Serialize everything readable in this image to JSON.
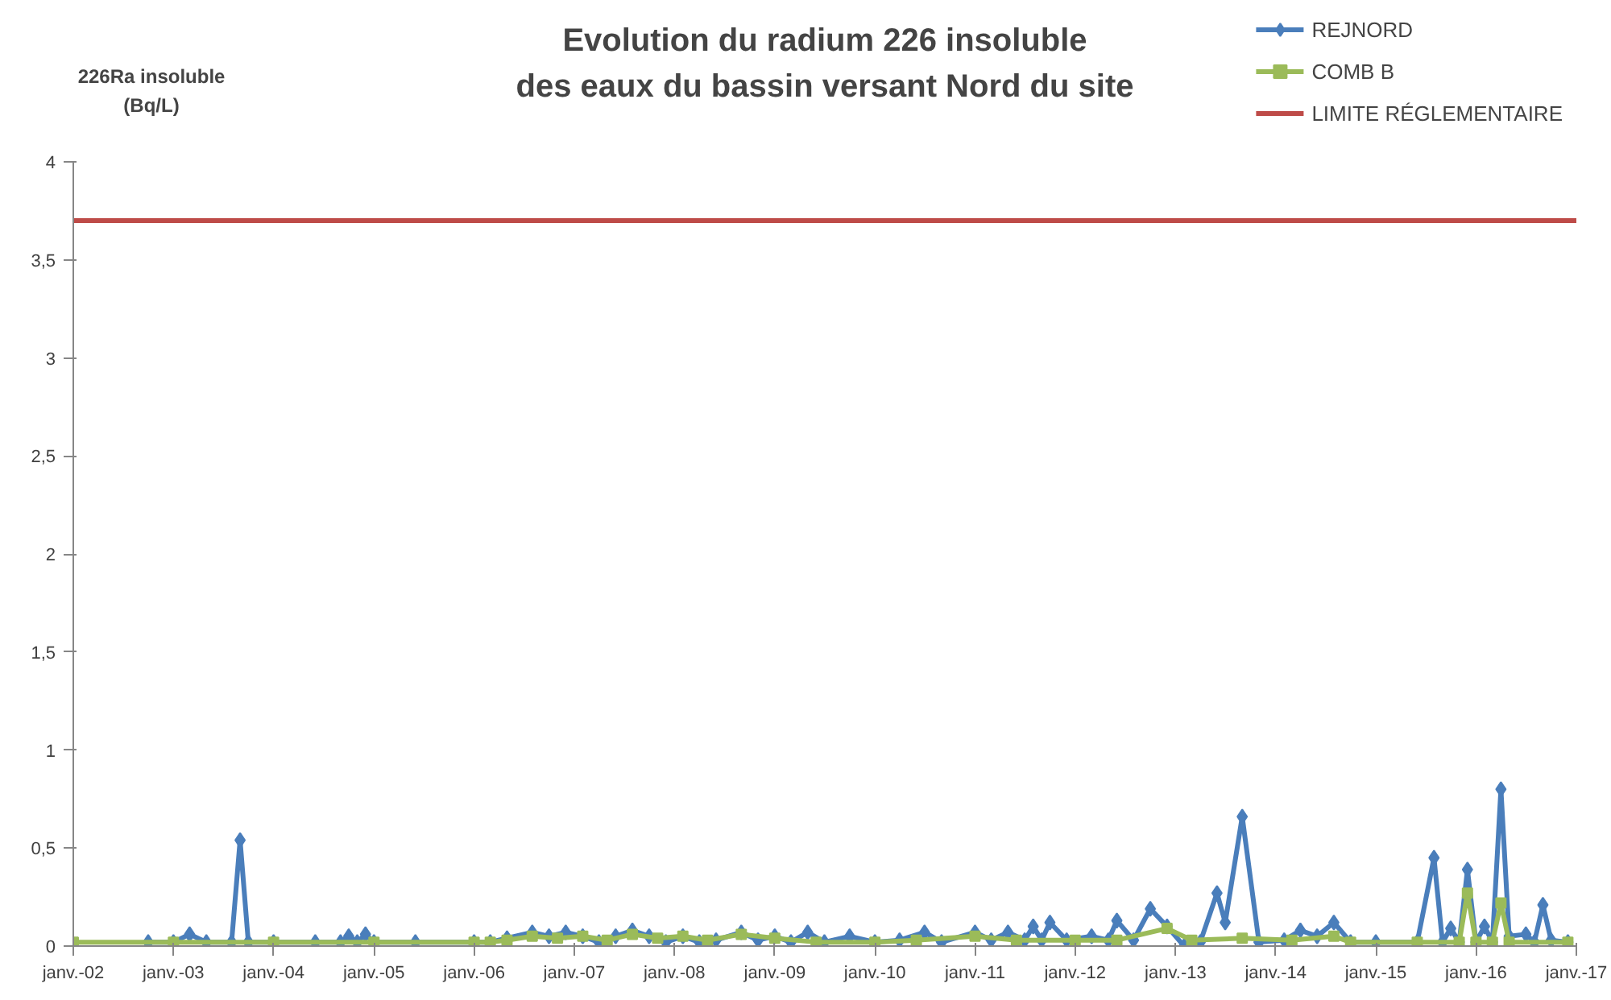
{
  "chart_data": {
    "type": "line",
    "title": "Evolution du radium 226 insoluble\ndes eaux du bassin versant Nord du site",
    "ylabel": "226Ra insoluble\n(Bq/L)",
    "xlim": [
      "2002-01",
      "2017-01"
    ],
    "ylim": [
      0,
      4
    ],
    "xticks": [
      {
        "value": "2002-01",
        "label": "janv.-02"
      },
      {
        "value": "2003-01",
        "label": "janv.-03"
      },
      {
        "value": "2004-01",
        "label": "janv.-04"
      },
      {
        "value": "2005-01",
        "label": "janv.-05"
      },
      {
        "value": "2006-01",
        "label": "janv.-06"
      },
      {
        "value": "2007-01",
        "label": "janv.-07"
      },
      {
        "value": "2008-01",
        "label": "janv.-08"
      },
      {
        "value": "2009-01",
        "label": "janv.-09"
      },
      {
        "value": "2010-01",
        "label": "janv.-10"
      },
      {
        "value": "2011-01",
        "label": "janv.-11"
      },
      {
        "value": "2012-01",
        "label": "janv.-12"
      },
      {
        "value": "2013-01",
        "label": "janv.-13"
      },
      {
        "value": "2014-01",
        "label": "janv.-14"
      },
      {
        "value": "2015-01",
        "label": "janv.-15"
      },
      {
        "value": "2016-01",
        "label": "janv.-16"
      },
      {
        "value": "2017-01",
        "label": "janv.-17"
      }
    ],
    "yticks": [
      0,
      {
        "value": 0.5,
        "label": "0,5"
      },
      1,
      {
        "value": 1.5,
        "label": "1,5"
      },
      2,
      {
        "value": 2.5,
        "label": "2,5"
      },
      3,
      {
        "value": 3.5,
        "label": "3,5"
      },
      4
    ],
    "legend": "top right",
    "line_style": "solid",
    "series": [
      {
        "name": "REJNORD",
        "color": "#4a7ebb",
        "marker": "diamond",
        "x": [
          "2002-10",
          "2003-01",
          "2003-03",
          "2003-05",
          "2003-08",
          "2003-09",
          "2003-10",
          "2004-01",
          "2004-06",
          "2004-09",
          "2004-10",
          "2004-11",
          "2004-12",
          "2005-01",
          "2005-06",
          "2006-01",
          "2006-03",
          "2006-05",
          "2006-08",
          "2006-10",
          "2006-12",
          "2007-02",
          "2007-04",
          "2007-06",
          "2007-08",
          "2007-10",
          "2007-12",
          "2008-02",
          "2008-04",
          "2008-06",
          "2008-09",
          "2008-11",
          "2009-01",
          "2009-03",
          "2009-05",
          "2009-07",
          "2009-10",
          "2010-01",
          "2010-04",
          "2010-07",
          "2010-09",
          "2011-01",
          "2011-03",
          "2011-05",
          "2011-07",
          "2011-08",
          "2011-09",
          "2011-10",
          "2011-12",
          "2012-03",
          "2012-05",
          "2012-06",
          "2012-08",
          "2012-10",
          "2012-12",
          "2013-02",
          "2013-04",
          "2013-06",
          "2013-07",
          "2013-09",
          "2013-11",
          "2014-02",
          "2014-04",
          "2014-06",
          "2014-08",
          "2014-10",
          "2015-01",
          "2015-06",
          "2015-08",
          "2015-09",
          "2015-10",
          "2015-11",
          "2015-12",
          "2016-01",
          "2016-02",
          "2016-03",
          "2016-04",
          "2016-05",
          "2016-07",
          "2016-08",
          "2016-09",
          "2016-10",
          "2016-12"
        ],
        "values": [
          0.02,
          0.02,
          0.06,
          0.02,
          0.02,
          0.54,
          0.02,
          0.02,
          0.02,
          0.02,
          0.05,
          0.02,
          0.06,
          0.02,
          0.02,
          0.02,
          0.02,
          0.04,
          0.07,
          0.05,
          0.07,
          0.05,
          0.02,
          0.05,
          0.08,
          0.05,
          0.02,
          0.05,
          0.02,
          0.03,
          0.07,
          0.03,
          0.05,
          0.02,
          0.07,
          0.02,
          0.05,
          0.02,
          0.03,
          0.07,
          0.02,
          0.07,
          0.03,
          0.07,
          0.03,
          0.1,
          0.03,
          0.12,
          0.03,
          0.05,
          0.03,
          0.13,
          0.03,
          0.19,
          0.1,
          0.0,
          0.02,
          0.27,
          0.12,
          0.66,
          0.02,
          0.03,
          0.08,
          0.05,
          0.12,
          0.02,
          0.02,
          0.02,
          0.45,
          0.02,
          0.09,
          0.02,
          0.39,
          0.02,
          0.1,
          0.02,
          0.8,
          0.05,
          0.06,
          0.02,
          0.21,
          0.03,
          0.02
        ]
      },
      {
        "name": "COMB B",
        "color": "#9bbb59",
        "marker": "square",
        "x": [
          "2002-01",
          "2003-01",
          "2004-01",
          "2005-01",
          "2006-01",
          "2006-03",
          "2006-05",
          "2006-08",
          "2006-11",
          "2007-02",
          "2007-05",
          "2007-08",
          "2007-11",
          "2008-02",
          "2008-05",
          "2008-09",
          "2009-01",
          "2009-06",
          "2010-01",
          "2010-06",
          "2011-01",
          "2011-06",
          "2012-01",
          "2012-06",
          "2012-12",
          "2013-03",
          "2013-09",
          "2014-03",
          "2014-08",
          "2014-10",
          "2015-06",
          "2015-11",
          "2015-12",
          "2016-01",
          "2016-03",
          "2016-04",
          "2016-05",
          "2016-12"
        ],
        "values": [
          0.02,
          0.02,
          0.02,
          0.02,
          0.02,
          0.02,
          0.03,
          0.05,
          0.04,
          0.05,
          0.03,
          0.06,
          0.04,
          0.05,
          0.03,
          0.06,
          0.04,
          0.02,
          0.02,
          0.03,
          0.05,
          0.03,
          0.03,
          0.03,
          0.09,
          0.03,
          0.04,
          0.03,
          0.05,
          0.02,
          0.02,
          0.02,
          0.27,
          0.02,
          0.02,
          0.22,
          0.02,
          0.02
        ]
      },
      {
        "name": "LIMITE RÉGLEMENTAIRE",
        "color": "#be4b48",
        "marker": "none",
        "x": [
          "2002-01",
          "2017-01"
        ],
        "values": [
          3.7,
          3.7
        ]
      }
    ]
  }
}
